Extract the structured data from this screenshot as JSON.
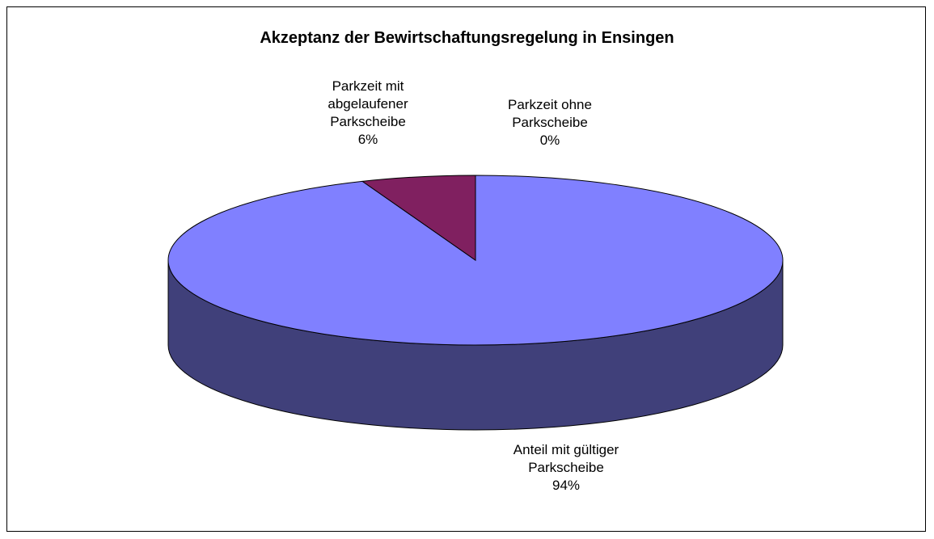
{
  "chart_data": {
    "type": "pie",
    "title": "Akzeptanz der Bewirtschaftungsregelung in Ensingen",
    "categories": [
      "Anteil mit gültiger Parkscheibe",
      "Parkzeit mit abgelaufener Parkscheibe",
      "Parkzeit ohne Parkscheibe"
    ],
    "values": [
      94,
      6,
      0
    ],
    "value_labels": [
      "94%",
      "6%",
      "0%"
    ],
    "colors": [
      "#8080ff",
      "#802060",
      "#ffffcc"
    ],
    "side_colors": [
      "#40407a",
      "#4a1238",
      "#8f8f66"
    ]
  }
}
